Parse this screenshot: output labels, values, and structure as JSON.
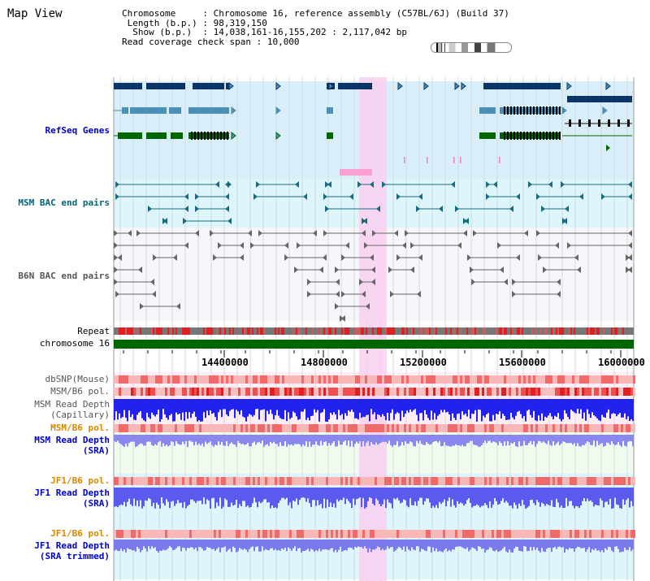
{
  "map_title": "Map View",
  "header_info": [
    {
      "key": "Chromosome    ",
      "value": " : Chromosome 16, reference assembly (C57BL/6J) (Build 37)"
    },
    {
      "key": " Length (b.p.)",
      "value": " : 98,319,150"
    },
    {
      "key": "  Show (b.p.) ",
      "value": " : 14,038,161-16,155,202 : 2,117,042 bp"
    },
    {
      "key": "Read coverage check span",
      "value": " : 10,000"
    }
  ],
  "tracks": {
    "refseq": "RefSeq Genes",
    "msm_bac": "MSM BAC end pairs",
    "b6n_bac": "B6N BAC end pairs",
    "repeat": "Repeat",
    "chromosome": "chromosome 16",
    "dbsnp": "dbSNP(Mouse)",
    "msm_b6_pol_1": "MSM/B6 pol.",
    "msm_depth_cap_1": "MSM Read Depth",
    "msm_depth_cap_2": "(Capillary)",
    "msm_b6_pol_2": "MSM/B6 pol.",
    "msm_depth_sra_1": "MSM Read Depth",
    "msm_depth_sra_2": "(SRA)",
    "jf1_b6_pol_1": "JF1/B6 pol.",
    "jf1_depth_sra_1": "JF1 Read Depth",
    "jf1_depth_sra_2": "(SRA)",
    "jf1_b6_pol_2": "JF1/B6 pol.",
    "jf1_depth_trim_1": "JF1 Read Depth",
    "jf1_depth_trim_2": "(SRA trimmed)"
  },
  "axis": {
    "ticks": [
      "14400000",
      "14800000",
      "15200000",
      "15600000",
      "16000000"
    ]
  },
  "colors": {
    "refseq_bg": "#d8eef8",
    "msm_bac_bg": "#ddf6fb",
    "highlight": "#f8d0f0",
    "dark_blue": "#0c3466",
    "mid_blue": "#4a8fb5",
    "green": "#006600",
    "teal": "#1a6a80",
    "grey": "#555555",
    "red": "#e02020",
    "depth_blue": "#2222ee",
    "depth_lavender": "#8888ee"
  }
}
